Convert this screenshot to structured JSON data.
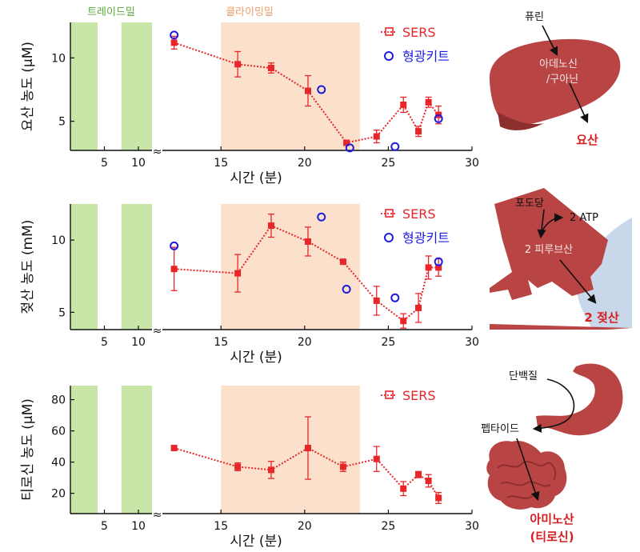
{
  "colors": {
    "sers": "#e8262a",
    "kit": "#1d1de0",
    "trade": "#c9e5a8",
    "climb": "#fbe1cc",
    "trade_text": "#5aaa38",
    "climb_text": "#f0a068",
    "organ": "#b94444",
    "organ_dark": "#8e2f2f",
    "muscle_bg": "#c8d8ea"
  },
  "bands": {
    "trade_label": "트레이드밀",
    "climb_label": "클라이밍밀"
  },
  "xaxis": {
    "label": "시간 (분)",
    "break_mark": "≈"
  },
  "legend": {
    "sers": "SERS",
    "kit": "형광키트"
  },
  "chart_data": [
    {
      "type": "scatter",
      "id": "uric",
      "ylabel": "요산 농도 (μM)",
      "xlabel": "시간 (분)",
      "left_xlim": [
        0,
        12
      ],
      "left_xticks": [
        5,
        10
      ],
      "right_xlim": [
        11.5,
        30
      ],
      "right_xticks": [
        15,
        20,
        25,
        30
      ],
      "ylim": [
        2.7,
        12.8
      ],
      "yticks": [
        5,
        10
      ],
      "trade_bands": [
        [
          0,
          4
        ],
        [
          7.5,
          12
        ]
      ],
      "climb_band": [
        15,
        23.3
      ],
      "series": [
        {
          "name": "SERS",
          "x": [
            12.2,
            16,
            18,
            20.2,
            22.5,
            24.3,
            25.9,
            26.8,
            27.4,
            28
          ],
          "y": [
            11.2,
            9.5,
            9.2,
            7.4,
            3.3,
            3.8,
            6.3,
            4.2,
            6.5,
            5.5
          ],
          "err": [
            0.5,
            1.0,
            0.4,
            1.2,
            0.2,
            0.5,
            0.6,
            0.4,
            0.4,
            0.7
          ]
        },
        {
          "name": "형광키트",
          "x": [
            12.2,
            21,
            22.7,
            25.4,
            28
          ],
          "y": [
            11.8,
            7.5,
            2.9,
            3.0,
            5.2
          ]
        }
      ]
    },
    {
      "type": "scatter",
      "id": "lactate",
      "ylabel": "젖산 농도 (mM)",
      "xlabel": "시간 (분)",
      "left_xlim": [
        0,
        12
      ],
      "left_xticks": [
        5,
        10
      ],
      "right_xlim": [
        11.5,
        30
      ],
      "right_xticks": [
        15,
        20,
        25,
        30
      ],
      "ylim": [
        3.8,
        12.5
      ],
      "yticks": [
        5,
        10
      ],
      "trade_bands": [
        [
          0,
          4
        ],
        [
          7.5,
          12
        ]
      ],
      "climb_band": [
        15,
        23.3
      ],
      "series": [
        {
          "name": "SERS",
          "x": [
            12.2,
            16,
            18,
            20.2,
            22.3,
            24.3,
            25.9,
            26.8,
            27.4,
            28
          ],
          "y": [
            8.0,
            7.7,
            11.0,
            9.9,
            8.5,
            5.8,
            4.4,
            5.3,
            8.1,
            8.1
          ],
          "err": [
            1.5,
            1.3,
            0.8,
            1.0,
            0.1,
            1.0,
            0.5,
            1.0,
            0.8,
            0.6
          ]
        },
        {
          "name": "형광키트",
          "x": [
            12.2,
            21,
            22.5,
            25.4,
            28
          ],
          "y": [
            9.6,
            11.6,
            6.6,
            6.0,
            8.5
          ]
        }
      ]
    },
    {
      "type": "scatter",
      "id": "tyrosine",
      "ylabel": "티로신 농도 (μM)",
      "xlabel": "시간 (분)",
      "left_xlim": [
        0,
        12
      ],
      "left_xticks": [
        5,
        10
      ],
      "right_xlim": [
        11.5,
        30
      ],
      "right_xticks": [
        15,
        20,
        25,
        30
      ],
      "ylim": [
        7,
        89
      ],
      "yticks": [
        20,
        40,
        60,
        80
      ],
      "trade_bands": [
        [
          0,
          4
        ],
        [
          7.5,
          12
        ]
      ],
      "climb_band": [
        15,
        23.3
      ],
      "series": [
        {
          "name": "SERS",
          "x": [
            12.2,
            16,
            18,
            20.2,
            22.3,
            24.3,
            25.9,
            26.8,
            27.4,
            28
          ],
          "y": [
            49,
            37,
            35,
            49,
            37,
            42,
            23,
            32,
            28,
            17
          ],
          "err": [
            1.5,
            2.5,
            5.5,
            20,
            3.0,
            8.0,
            4.5,
            2.0,
            4.0,
            3.5
          ]
        }
      ]
    }
  ],
  "anatomy": {
    "liver": {
      "label_top": "퓨린",
      "label_mid1": "아데노신",
      "label_mid2": "/구아닌",
      "product": "요산"
    },
    "muscle": {
      "label_top": "포도당",
      "label_atp": "2 ATP",
      "label_mid": "2 피루브산",
      "product": "2 젖산"
    },
    "gut": {
      "label_top": "단백질",
      "label_mid": "펩타이드",
      "product1": "아미노산",
      "product2": "(티로신)"
    }
  }
}
